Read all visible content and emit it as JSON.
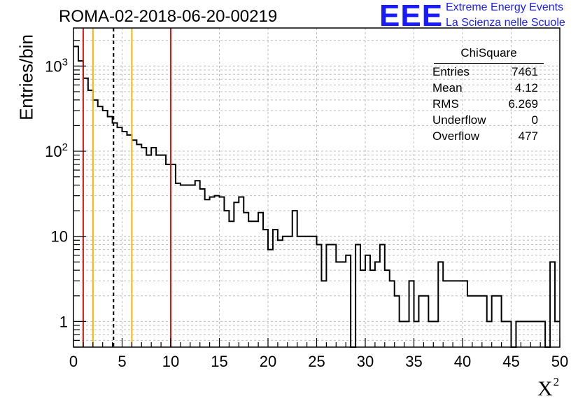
{
  "header": {
    "run_title": "ROMA-02-2018-06-20-00219",
    "logo_text": "EEE",
    "logo_line1": "Extreme Energy Events",
    "logo_line2": "La Scienza nelle Scuole"
  },
  "stats_box": {
    "title": "ChiSquare",
    "rows": [
      {
        "label": "Entries",
        "value": "7461"
      },
      {
        "label": "Mean",
        "value": "4.12"
      },
      {
        "label": "RMS",
        "value": "6.269"
      },
      {
        "label": "Underflow",
        "value": "0"
      },
      {
        "label": "Overflow",
        "value": "477"
      }
    ]
  },
  "colors": {
    "histogram": "#000000",
    "red_lines": "#dd1111",
    "yellow_lines": "#f2b800",
    "mean_line": "#000000",
    "grid": "#bdbdbd",
    "logo": "#1a1aff"
  },
  "chart_data": {
    "type": "histogram",
    "title": "ROMA-02-2018-06-20-00219",
    "xlabel": "X²",
    "ylabel": "Entries/bin",
    "xlim": [
      0,
      50
    ],
    "ylim": [
      0.5,
      2800
    ],
    "yscale": "log",
    "grid": true,
    "bin_width": 0.5,
    "x_ticks": [
      0,
      5,
      10,
      15,
      20,
      25,
      30,
      35,
      40,
      45,
      50
    ],
    "y_ticks": [
      {
        "value": 1,
        "label": "1"
      },
      {
        "value": 10,
        "label": "10"
      },
      {
        "value": 100,
        "label": "10²"
      },
      {
        "value": 1000,
        "label": "10³"
      }
    ],
    "values": [
      1700,
      1150,
      720,
      520,
      400,
      335,
      300,
      255,
      215,
      190,
      170,
      155,
      135,
      120,
      110,
      90,
      110,
      90,
      90,
      70,
      70,
      42,
      40,
      40,
      40,
      45,
      36,
      27,
      29,
      30,
      29,
      20,
      15,
      25,
      29,
      19,
      15,
      15,
      19,
      12,
      7,
      12,
      9,
      10,
      10,
      20,
      10,
      10,
      10,
      10,
      8,
      3,
      8,
      8,
      5,
      5,
      6,
      0,
      8,
      4,
      6,
      4,
      5,
      8,
      4,
      3,
      2,
      1,
      1,
      3,
      1,
      2,
      2,
      1,
      1,
      5,
      3,
      3,
      3,
      3,
      3,
      2,
      2,
      2,
      2,
      1,
      2,
      2,
      1,
      1,
      0,
      1,
      1,
      1,
      1,
      1,
      1,
      0,
      5,
      1
    ],
    "vertical_lines": [
      {
        "x": 1,
        "color": "red",
        "style": "solid"
      },
      {
        "x": 2,
        "color": "yellow",
        "style": "solid"
      },
      {
        "x": 4.12,
        "color": "black",
        "style": "dashed"
      },
      {
        "x": 6,
        "color": "yellow",
        "style": "solid"
      },
      {
        "x": 10,
        "color": "red",
        "style": "solid"
      }
    ]
  }
}
